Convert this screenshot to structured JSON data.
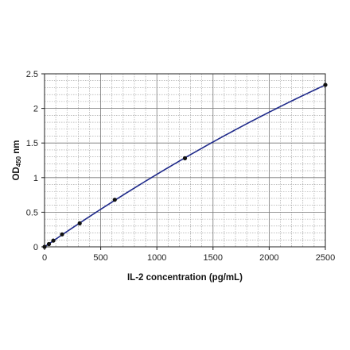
{
  "chart_data": {
    "type": "scatter",
    "xlabel": "IL-2 concentration (pg/mL)",
    "ylabel_main": "OD",
    "ylabel_subscript": "450",
    "ylabel_unit": " nm",
    "xlim": [
      0,
      2500
    ],
    "ylim": [
      0,
      2.5
    ],
    "x_ticks": [
      0,
      500,
      1000,
      1500,
      2000,
      2500
    ],
    "x_tick_labels": [
      "0",
      "500",
      "1000",
      "1500",
      "2000",
      "2500"
    ],
    "y_ticks": [
      0,
      0.5,
      1,
      1.5,
      2,
      2.5
    ],
    "y_tick_labels": [
      "0",
      "0.5",
      "1",
      "1.5",
      "2",
      "2.5"
    ],
    "x_minor_step": 100,
    "y_minor_step": 0.1,
    "grid": true,
    "legend": "none",
    "series": [
      {
        "x": [
          0,
          39,
          78,
          156,
          313,
          625,
          1250,
          2500
        ],
        "y": [
          0.0,
          0.04,
          0.09,
          0.18,
          0.34,
          0.68,
          1.28,
          2.34
        ]
      }
    ],
    "trendline": {
      "type": "polynomial",
      "x_range": [
        0,
        2500
      ],
      "y_at_end": 2.34
    },
    "colors": {
      "points": "#111111",
      "curve": "#1f2a8a",
      "grid_major": "#777777",
      "grid_minor": "#999999",
      "axis": "#222222"
    }
  }
}
